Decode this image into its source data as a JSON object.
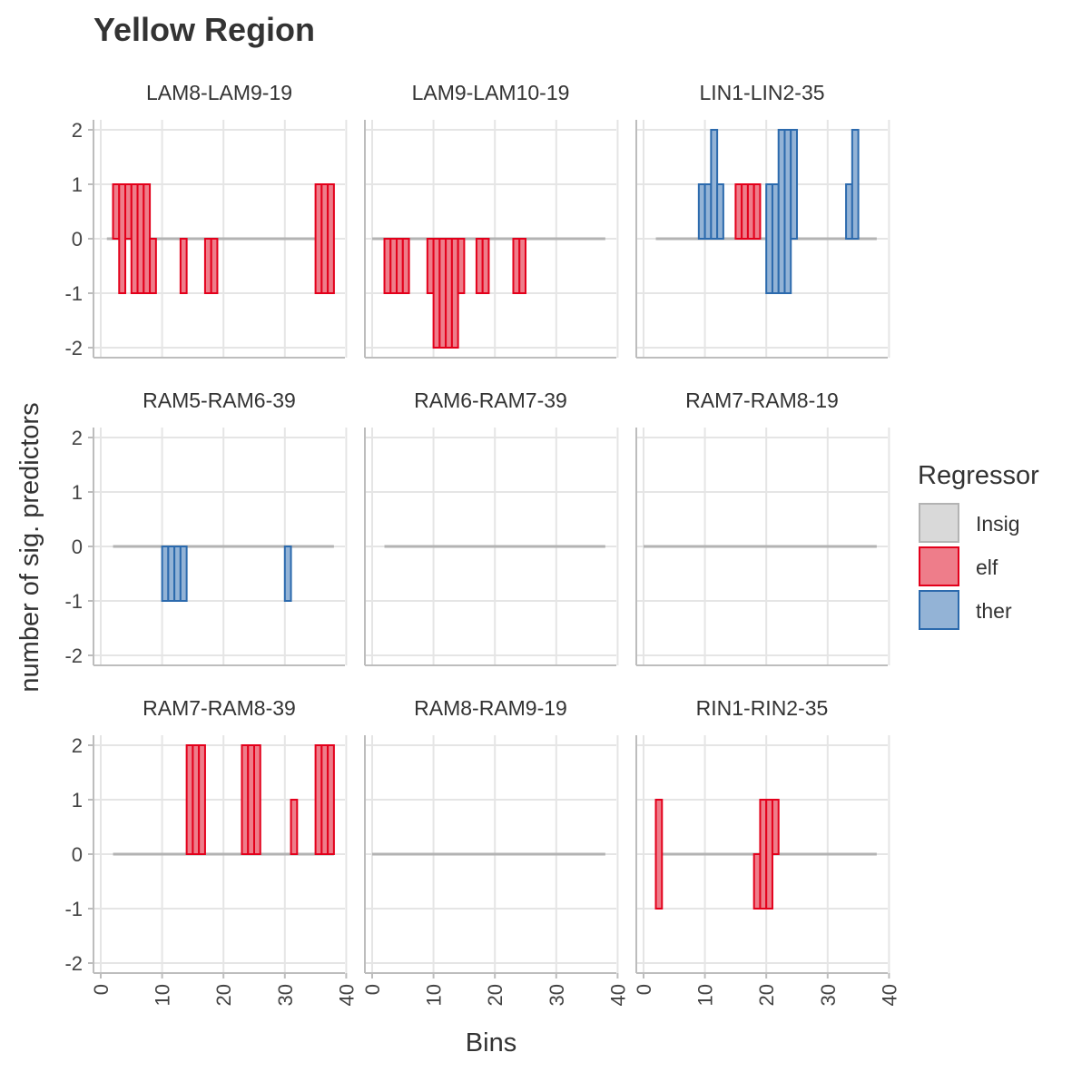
{
  "chart_data": {
    "type": "bar",
    "title": "Yellow Region",
    "xlabel": "Bins",
    "ylabel": "number of sig. predictors",
    "xlim": [
      0,
      40
    ],
    "ylim": [
      -2,
      2
    ],
    "x_ticks": [
      "0",
      "10",
      "20",
      "30",
      "40"
    ],
    "y_ticks": [
      "2",
      "1",
      "0",
      "-1",
      "-2"
    ],
    "grid": true,
    "legend": {
      "title": "Regressor",
      "placement": "right",
      "entries": [
        {
          "name": "Insig",
          "fill": "#d9d9d9",
          "stroke": "#b3b3b3"
        },
        {
          "name": "elf",
          "fill": "#ee7d8a",
          "stroke": "#e3001b"
        },
        {
          "name": "ther",
          "fill": "#93b3d6",
          "stroke": "#2c6aad"
        }
      ]
    },
    "panels": [
      {
        "label": "LAM8-LAM9-19",
        "baseline": [
          1,
          38
        ],
        "bars": [
          {
            "x0": 2,
            "x1": 3,
            "y0": 0,
            "y1": 1,
            "r": "elf"
          },
          {
            "x0": 3,
            "x1": 4,
            "y0": -1,
            "y1": 1,
            "r": "elf"
          },
          {
            "x0": 4,
            "x1": 5,
            "y0": 0,
            "y1": 1,
            "r": "elf"
          },
          {
            "x0": 5,
            "x1": 8,
            "y0": -1,
            "y1": 1,
            "r": "elf"
          },
          {
            "x0": 8,
            "x1": 9,
            "y0": -1,
            "y1": 0,
            "r": "elf"
          },
          {
            "x0": 13,
            "x1": 14,
            "y0": -1,
            "y1": 0,
            "r": "elf"
          },
          {
            "x0": 17,
            "x1": 19,
            "y0": -1,
            "y1": 0,
            "r": "elf"
          },
          {
            "x0": 35,
            "x1": 38,
            "y0": -1,
            "y1": 1,
            "r": "elf"
          }
        ]
      },
      {
        "label": "LAM9-LAM10-19",
        "baseline": [
          0,
          38
        ],
        "bars": [
          {
            "x0": 2,
            "x1": 6,
            "y0": -1,
            "y1": 0,
            "r": "elf"
          },
          {
            "x0": 9,
            "x1": 10,
            "y0": -1,
            "y1": 0,
            "r": "elf"
          },
          {
            "x0": 10,
            "x1": 14,
            "y0": -2,
            "y1": 0,
            "r": "elf"
          },
          {
            "x0": 14,
            "x1": 15,
            "y0": -1,
            "y1": 0,
            "r": "elf"
          },
          {
            "x0": 17,
            "x1": 19,
            "y0": -1,
            "y1": 0,
            "r": "elf"
          },
          {
            "x0": 23,
            "x1": 25,
            "y0": -1,
            "y1": 0,
            "r": "elf"
          }
        ]
      },
      {
        "label": "LIN1-LIN2-35",
        "baseline": [
          2,
          38
        ],
        "bars": [
          {
            "x0": 9,
            "x1": 11,
            "y0": 0,
            "y1": 1,
            "r": "ther"
          },
          {
            "x0": 11,
            "x1": 12,
            "y0": 0,
            "y1": 2,
            "r": "ther"
          },
          {
            "x0": 12,
            "x1": 13,
            "y0": 0,
            "y1": 1,
            "r": "ther"
          },
          {
            "x0": 15,
            "x1": 19,
            "y0": 0,
            "y1": 1,
            "r": "elf"
          },
          {
            "x0": 20,
            "x1": 22,
            "y0": -1,
            "y1": 1,
            "r": "ther"
          },
          {
            "x0": 22,
            "x1": 24,
            "y0": -1,
            "y1": 2,
            "r": "ther"
          },
          {
            "x0": 24,
            "x1": 25,
            "y0": 0,
            "y1": 2,
            "r": "ther"
          },
          {
            "x0": 33,
            "x1": 34,
            "y0": 0,
            "y1": 1,
            "r": "ther"
          },
          {
            "x0": 34,
            "x1": 35,
            "y0": 0,
            "y1": 2,
            "r": "ther"
          }
        ]
      },
      {
        "label": "RAM5-RAM6-39",
        "baseline": [
          2,
          38
        ],
        "bars": [
          {
            "x0": 10,
            "x1": 14,
            "y0": -1,
            "y1": 0,
            "r": "ther"
          },
          {
            "x0": 30,
            "x1": 31,
            "y0": -1,
            "y1": 0,
            "r": "ther"
          }
        ]
      },
      {
        "label": "RAM6-RAM7-39",
        "baseline": [
          2,
          38
        ],
        "bars": []
      },
      {
        "label": "RAM7-RAM8-19",
        "baseline": [
          0,
          38
        ],
        "bars": []
      },
      {
        "label": "RAM7-RAM8-39",
        "baseline": [
          2,
          38
        ],
        "bars": [
          {
            "x0": 14,
            "x1": 17,
            "y0": 0,
            "y1": 2,
            "r": "elf"
          },
          {
            "x0": 23,
            "x1": 26,
            "y0": 0,
            "y1": 2,
            "r": "elf"
          },
          {
            "x0": 31,
            "x1": 32,
            "y0": 0,
            "y1": 1,
            "r": "elf"
          },
          {
            "x0": 35,
            "x1": 38,
            "y0": 0,
            "y1": 2,
            "r": "elf"
          }
        ]
      },
      {
        "label": "RAM8-RAM9-19",
        "baseline": [
          0,
          38
        ],
        "bars": []
      },
      {
        "label": "RIN1-RIN2-35",
        "baseline": [
          2,
          38
        ],
        "bars": [
          {
            "x0": 2,
            "x1": 3,
            "y0": -1,
            "y1": 1,
            "r": "elf"
          },
          {
            "x0": 18,
            "x1": 19,
            "y0": -1,
            "y1": 0,
            "r": "elf"
          },
          {
            "x0": 19,
            "x1": 21,
            "y0": -1,
            "y1": 1,
            "r": "elf"
          },
          {
            "x0": 21,
            "x1": 22,
            "y0": 0,
            "y1": 1,
            "r": "elf"
          }
        ]
      }
    ]
  }
}
